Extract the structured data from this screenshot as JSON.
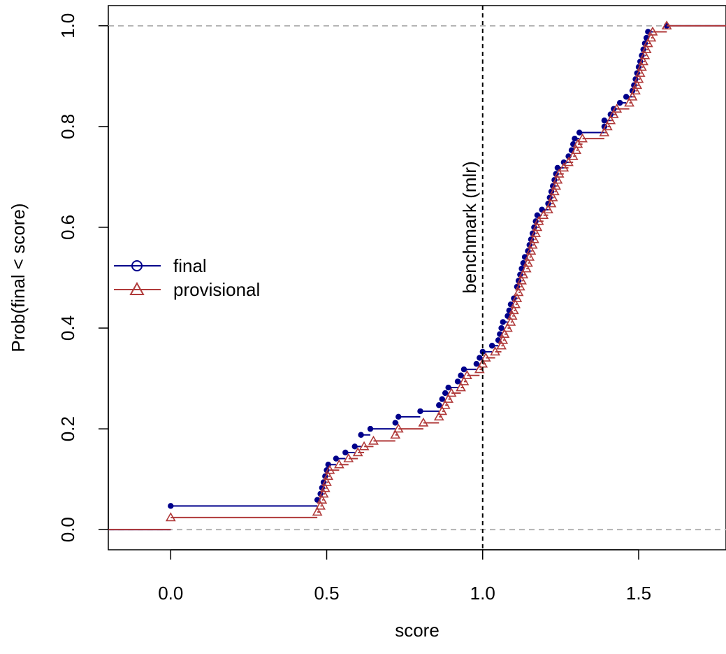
{
  "chart_data": {
    "type": "line",
    "title": "",
    "xlabel": "score",
    "ylabel": "Prob(final < score)",
    "xlim": [
      -0.2,
      1.78
    ],
    "ylim": [
      -0.04,
      1.04
    ],
    "x_ticks": [
      0.0,
      0.5,
      1.0,
      1.5
    ],
    "x_tick_labels": [
      "0.0",
      "0.5",
      "1.0",
      "1.5"
    ],
    "y_ticks": [
      0.0,
      0.2,
      0.4,
      0.6,
      0.8,
      1.0
    ],
    "y_tick_labels": [
      "0.0",
      "0.2",
      "0.4",
      "0.6",
      "0.8",
      "1.0"
    ],
    "hlines": [
      0,
      1
    ],
    "vline": {
      "x": 1.0,
      "label": "benchmark (mlr)"
    },
    "legend": {
      "position": "left",
      "entries": [
        "final",
        "provisional"
      ]
    },
    "series": [
      {
        "name": "final",
        "color": "#00008B",
        "marker": "circle",
        "points": [
          [
            0.0,
            0.047
          ],
          [
            0.47,
            0.059
          ],
          [
            0.48,
            0.071
          ],
          [
            0.485,
            0.083
          ],
          [
            0.49,
            0.094
          ],
          [
            0.495,
            0.106
          ],
          [
            0.5,
            0.118
          ],
          [
            0.505,
            0.129
          ],
          [
            0.53,
            0.141
          ],
          [
            0.56,
            0.153
          ],
          [
            0.59,
            0.165
          ],
          [
            0.61,
            0.188
          ],
          [
            0.64,
            0.2
          ],
          [
            0.72,
            0.212
          ],
          [
            0.73,
            0.224
          ],
          [
            0.8,
            0.235
          ],
          [
            0.86,
            0.247
          ],
          [
            0.87,
            0.259
          ],
          [
            0.88,
            0.271
          ],
          [
            0.89,
            0.282
          ],
          [
            0.92,
            0.294
          ],
          [
            0.93,
            0.306
          ],
          [
            0.94,
            0.318
          ],
          [
            0.98,
            0.329
          ],
          [
            0.99,
            0.341
          ],
          [
            1.0,
            0.353
          ],
          [
            1.03,
            0.365
          ],
          [
            1.05,
            0.376
          ],
          [
            1.055,
            0.388
          ],
          [
            1.06,
            0.4
          ],
          [
            1.065,
            0.412
          ],
          [
            1.08,
            0.424
          ],
          [
            1.085,
            0.435
          ],
          [
            1.09,
            0.447
          ],
          [
            1.1,
            0.459
          ],
          [
            1.11,
            0.482
          ],
          [
            1.115,
            0.494
          ],
          [
            1.12,
            0.506
          ],
          [
            1.125,
            0.518
          ],
          [
            1.13,
            0.529
          ],
          [
            1.135,
            0.541
          ],
          [
            1.145,
            0.553
          ],
          [
            1.15,
            0.565
          ],
          [
            1.155,
            0.576
          ],
          [
            1.16,
            0.588
          ],
          [
            1.165,
            0.6
          ],
          [
            1.17,
            0.612
          ],
          [
            1.175,
            0.624
          ],
          [
            1.19,
            0.635
          ],
          [
            1.21,
            0.647
          ],
          [
            1.215,
            0.659
          ],
          [
            1.22,
            0.671
          ],
          [
            1.225,
            0.682
          ],
          [
            1.23,
            0.694
          ],
          [
            1.235,
            0.706
          ],
          [
            1.24,
            0.718
          ],
          [
            1.26,
            0.729
          ],
          [
            1.275,
            0.741
          ],
          [
            1.285,
            0.753
          ],
          [
            1.29,
            0.765
          ],
          [
            1.295,
            0.776
          ],
          [
            1.31,
            0.788
          ],
          [
            1.39,
            0.8
          ],
          [
            1.39,
            0.812
          ],
          [
            1.41,
            0.824
          ],
          [
            1.42,
            0.835
          ],
          [
            1.44,
            0.847
          ],
          [
            1.46,
            0.859
          ],
          [
            1.48,
            0.871
          ],
          [
            1.485,
            0.882
          ],
          [
            1.49,
            0.894
          ],
          [
            1.495,
            0.906
          ],
          [
            1.5,
            0.918
          ],
          [
            1.505,
            0.929
          ],
          [
            1.51,
            0.941
          ],
          [
            1.515,
            0.953
          ],
          [
            1.52,
            0.965
          ],
          [
            1.525,
            0.976
          ],
          [
            1.53,
            0.988
          ],
          [
            1.59,
            1.0
          ]
        ]
      },
      {
        "name": "provisional",
        "color": "#B03A3A",
        "marker": "triangle",
        "points": [
          [
            0.0,
            0.024
          ],
          [
            0.47,
            0.035
          ],
          [
            0.48,
            0.047
          ],
          [
            0.485,
            0.059
          ],
          [
            0.49,
            0.071
          ],
          [
            0.495,
            0.082
          ],
          [
            0.5,
            0.094
          ],
          [
            0.505,
            0.106
          ],
          [
            0.51,
            0.118
          ],
          [
            0.54,
            0.129
          ],
          [
            0.57,
            0.141
          ],
          [
            0.6,
            0.153
          ],
          [
            0.62,
            0.165
          ],
          [
            0.65,
            0.176
          ],
          [
            0.72,
            0.188
          ],
          [
            0.73,
            0.2
          ],
          [
            0.81,
            0.212
          ],
          [
            0.86,
            0.224
          ],
          [
            0.87,
            0.235
          ],
          [
            0.88,
            0.247
          ],
          [
            0.89,
            0.259
          ],
          [
            0.9,
            0.271
          ],
          [
            0.93,
            0.282
          ],
          [
            0.94,
            0.294
          ],
          [
            0.95,
            0.306
          ],
          [
            0.99,
            0.318
          ],
          [
            1.0,
            0.329
          ],
          [
            1.01,
            0.341
          ],
          [
            1.04,
            0.353
          ],
          [
            1.06,
            0.365
          ],
          [
            1.065,
            0.376
          ],
          [
            1.07,
            0.388
          ],
          [
            1.08,
            0.4
          ],
          [
            1.09,
            0.412
          ],
          [
            1.095,
            0.424
          ],
          [
            1.1,
            0.435
          ],
          [
            1.105,
            0.447
          ],
          [
            1.11,
            0.459
          ],
          [
            1.115,
            0.471
          ],
          [
            1.12,
            0.482
          ],
          [
            1.125,
            0.494
          ],
          [
            1.13,
            0.506
          ],
          [
            1.14,
            0.518
          ],
          [
            1.145,
            0.529
          ],
          [
            1.15,
            0.541
          ],
          [
            1.155,
            0.553
          ],
          [
            1.16,
            0.565
          ],
          [
            1.165,
            0.576
          ],
          [
            1.17,
            0.588
          ],
          [
            1.175,
            0.6
          ],
          [
            1.18,
            0.612
          ],
          [
            1.195,
            0.624
          ],
          [
            1.21,
            0.635
          ],
          [
            1.22,
            0.647
          ],
          [
            1.225,
            0.659
          ],
          [
            1.23,
            0.671
          ],
          [
            1.235,
            0.682
          ],
          [
            1.24,
            0.694
          ],
          [
            1.245,
            0.706
          ],
          [
            1.26,
            0.718
          ],
          [
            1.275,
            0.729
          ],
          [
            1.29,
            0.741
          ],
          [
            1.3,
            0.753
          ],
          [
            1.305,
            0.765
          ],
          [
            1.32,
            0.776
          ],
          [
            1.39,
            0.788
          ],
          [
            1.4,
            0.8
          ],
          [
            1.41,
            0.812
          ],
          [
            1.42,
            0.824
          ],
          [
            1.43,
            0.835
          ],
          [
            1.47,
            0.847
          ],
          [
            1.48,
            0.859
          ],
          [
            1.49,
            0.871
          ],
          [
            1.495,
            0.882
          ],
          [
            1.5,
            0.894
          ],
          [
            1.505,
            0.906
          ],
          [
            1.51,
            0.918
          ],
          [
            1.515,
            0.929
          ],
          [
            1.52,
            0.941
          ],
          [
            1.525,
            0.953
          ],
          [
            1.53,
            0.965
          ],
          [
            1.54,
            0.976
          ],
          [
            1.545,
            0.988
          ],
          [
            1.59,
            1.0
          ]
        ]
      }
    ]
  }
}
